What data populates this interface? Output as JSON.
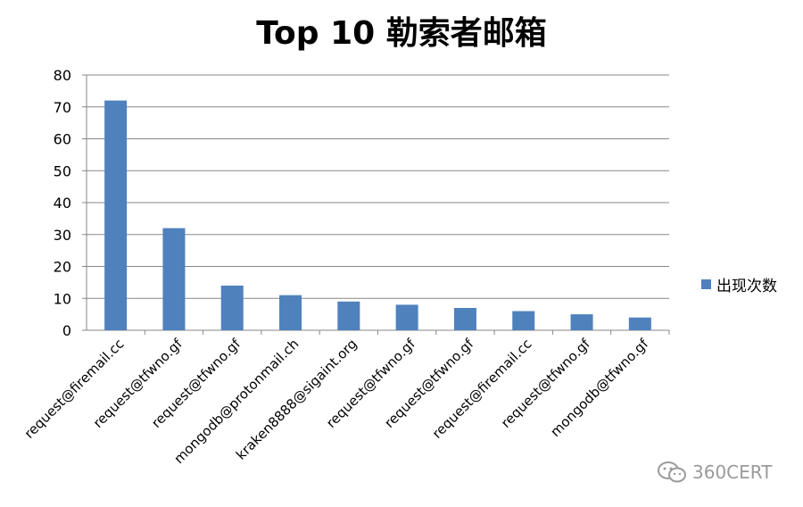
{
  "chart_data": {
    "type": "bar",
    "title": "Top 10 勒索者邮箱",
    "categories": [
      "request@firemail.cc",
      "request@tfwno.gf",
      "request@tfwno.gf",
      "mongodb@protonmail.ch",
      "kraken8888@sigaint.org",
      "request@tfwno.gf",
      "request@tfwno.gf",
      "request@firemail.cc",
      "request@tfwno.gf",
      "mongodb@tfwno.gf"
    ],
    "series": [
      {
        "name": "出现次数",
        "values": [
          72,
          32,
          14,
          11,
          9,
          8,
          7,
          6,
          5,
          4
        ],
        "color": "#4f81bd"
      }
    ],
    "ylim": [
      0,
      80
    ],
    "yticks": [
      0,
      10,
      20,
      30,
      40,
      50,
      60,
      70,
      80
    ],
    "grid": true,
    "legend_position": "right"
  },
  "watermark": {
    "text": "360CERT",
    "icon": "wechat-icon"
  }
}
